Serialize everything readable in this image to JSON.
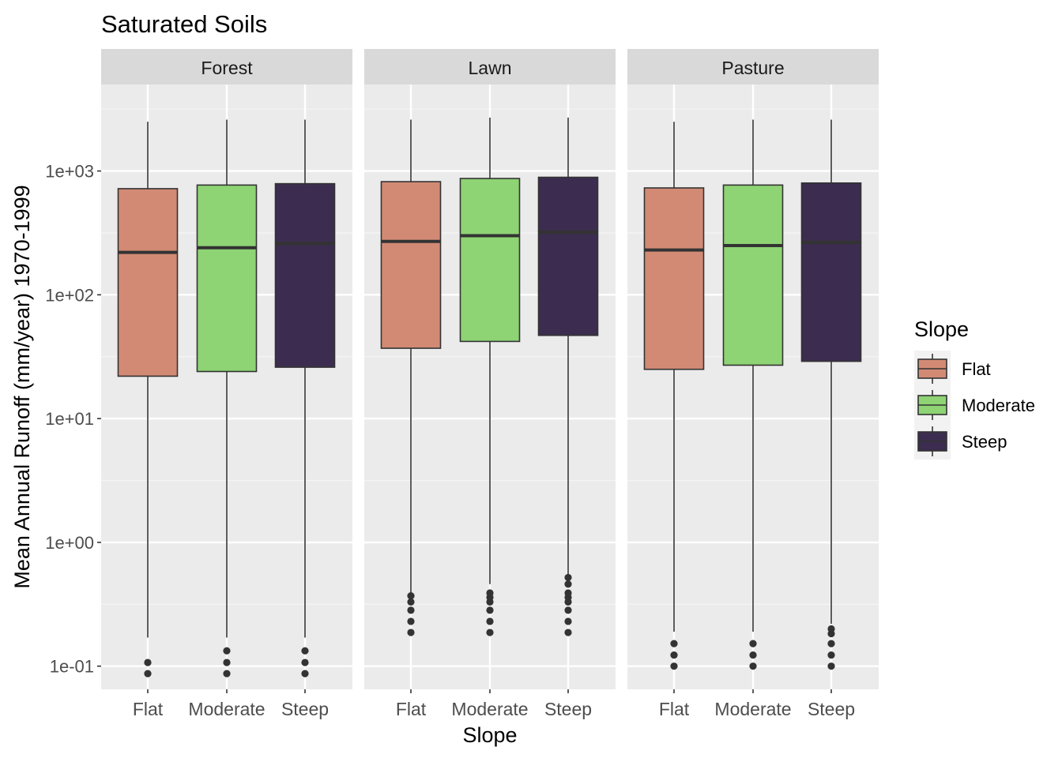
{
  "chart_data": {
    "type": "boxplot",
    "title": "Saturated Soils",
    "xlabel": "Slope",
    "ylabel": "Mean Annual Runoff (mm/year) 1970-1999",
    "y_scale": "log10",
    "ylim": [
      0.065,
      5000
    ],
    "y_ticks": [
      {
        "value": 0.1,
        "label": "1e-01"
      },
      {
        "value": 1,
        "label": "1e+00"
      },
      {
        "value": 10,
        "label": "1e+01"
      },
      {
        "value": 100,
        "label": "1e+02"
      },
      {
        "value": 1000,
        "label": "1e+03"
      }
    ],
    "grid": true,
    "legend": {
      "title": "Slope",
      "placement": "right",
      "entries": [
        {
          "label": "Flat",
          "color": "#d28a74"
        },
        {
          "label": "Moderate",
          "color": "#8ed374"
        },
        {
          "label": "Steep",
          "color": "#3c2d50"
        }
      ]
    },
    "categories": [
      "Flat",
      "Moderate",
      "Steep"
    ],
    "panels": [
      {
        "name": "Forest",
        "boxes": [
          {
            "category": "Flat",
            "whisker_low": 0.17,
            "q1": 22,
            "median": 220,
            "q3": 720,
            "whisker_high": 2500,
            "outliers": [
              0.087,
              0.107
            ]
          },
          {
            "category": "Moderate",
            "whisker_low": 0.17,
            "q1": 24,
            "median": 240,
            "q3": 770,
            "whisker_high": 2600,
            "outliers": [
              0.087,
              0.107,
              0.133
            ]
          },
          {
            "category": "Steep",
            "whisker_low": 0.17,
            "q1": 26,
            "median": 260,
            "q3": 790,
            "whisker_high": 2600,
            "outliers": [
              0.087,
              0.107,
              0.133
            ]
          }
        ]
      },
      {
        "name": "Lawn",
        "boxes": [
          {
            "category": "Flat",
            "whisker_low": 0.38,
            "q1": 37,
            "median": 270,
            "q3": 820,
            "whisker_high": 2600,
            "outliers": [
              0.187,
              0.23,
              0.283,
              0.33,
              0.37
            ]
          },
          {
            "category": "Moderate",
            "whisker_low": 0.46,
            "q1": 42,
            "median": 300,
            "q3": 870,
            "whisker_high": 2700,
            "outliers": [
              0.187,
              0.23,
              0.283,
              0.33,
              0.36,
              0.39
            ]
          },
          {
            "category": "Steep",
            "whisker_low": 0.54,
            "q1": 47,
            "median": 320,
            "q3": 890,
            "whisker_high": 2700,
            "outliers": [
              0.187,
              0.23,
              0.283,
              0.33,
              0.36,
              0.39,
              0.46,
              0.52
            ]
          }
        ]
      },
      {
        "name": "Pasture",
        "boxes": [
          {
            "category": "Flat",
            "whisker_low": 0.19,
            "q1": 25,
            "median": 230,
            "q3": 730,
            "whisker_high": 2500,
            "outliers": [
              0.1,
              0.123,
              0.152
            ]
          },
          {
            "category": "Moderate",
            "whisker_low": 0.19,
            "q1": 27,
            "median": 250,
            "q3": 770,
            "whisker_high": 2600,
            "outliers": [
              0.1,
              0.123,
              0.152
            ]
          },
          {
            "category": "Steep",
            "whisker_low": 0.22,
            "q1": 29,
            "median": 265,
            "q3": 800,
            "whisker_high": 2600,
            "outliers": [
              0.1,
              0.123,
              0.152,
              0.183,
              0.2
            ]
          }
        ]
      }
    ]
  }
}
